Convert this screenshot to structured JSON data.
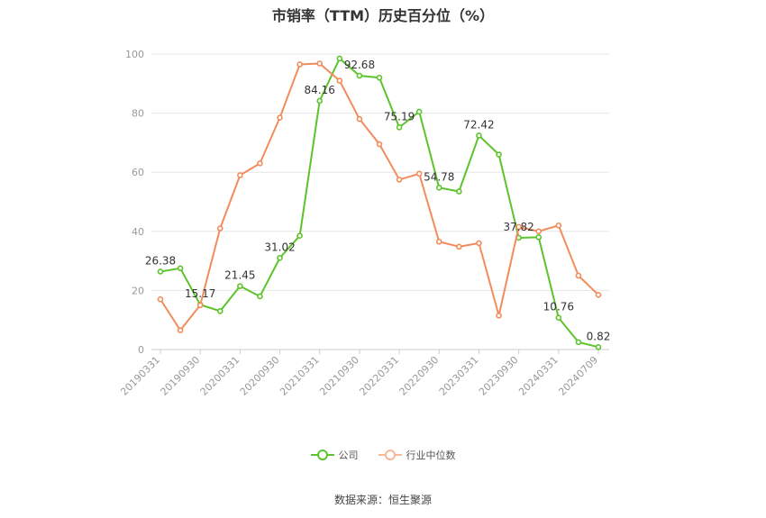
{
  "chart_data": {
    "type": "line",
    "title": "市销率（TTM）历史百分位（%）",
    "source": "数据来源：恒生聚源",
    "ylim": [
      0,
      100
    ],
    "y_ticks": [
      "0",
      "20",
      "40",
      "60",
      "80",
      "100"
    ],
    "x_tick_labels": [
      "20190331",
      "20190930",
      "20200331",
      "20200930",
      "20210331",
      "20210930",
      "20220331",
      "20220930",
      "20230331",
      "20230930",
      "20240331",
      "20240709"
    ],
    "grid": true,
    "legend_position": "bottom",
    "series": [
      {
        "name": "公司",
        "color": "#5cc42b",
        "values": [
          26.38,
          27.5,
          15.17,
          13.0,
          21.45,
          18.0,
          31.02,
          38.5,
          84.16,
          98.5,
          92.68,
          92.0,
          75.19,
          80.5,
          54.78,
          53.5,
          72.42,
          66.0,
          37.82,
          38.0,
          10.76,
          2.5,
          0.82
        ],
        "labels": [
          "26.38",
          "",
          "15.17",
          "",
          "21.45",
          "",
          "31.02",
          "",
          "84.16",
          "",
          "92.68",
          "",
          "75.19",
          "",
          "54.78",
          "",
          "72.42",
          "",
          "37.82",
          "",
          "10.76",
          "",
          "0.82"
        ]
      },
      {
        "name": "行业中位数",
        "color": "#f28c5c",
        "values": [
          17.0,
          6.5,
          15.0,
          41.0,
          59.0,
          63.0,
          78.5,
          96.5,
          96.8,
          91.0,
          78.0,
          69.5,
          57.5,
          59.5,
          36.5,
          34.8,
          36.0,
          11.5,
          41.5,
          40.0,
          42.0,
          25.0,
          18.5
        ]
      }
    ]
  }
}
